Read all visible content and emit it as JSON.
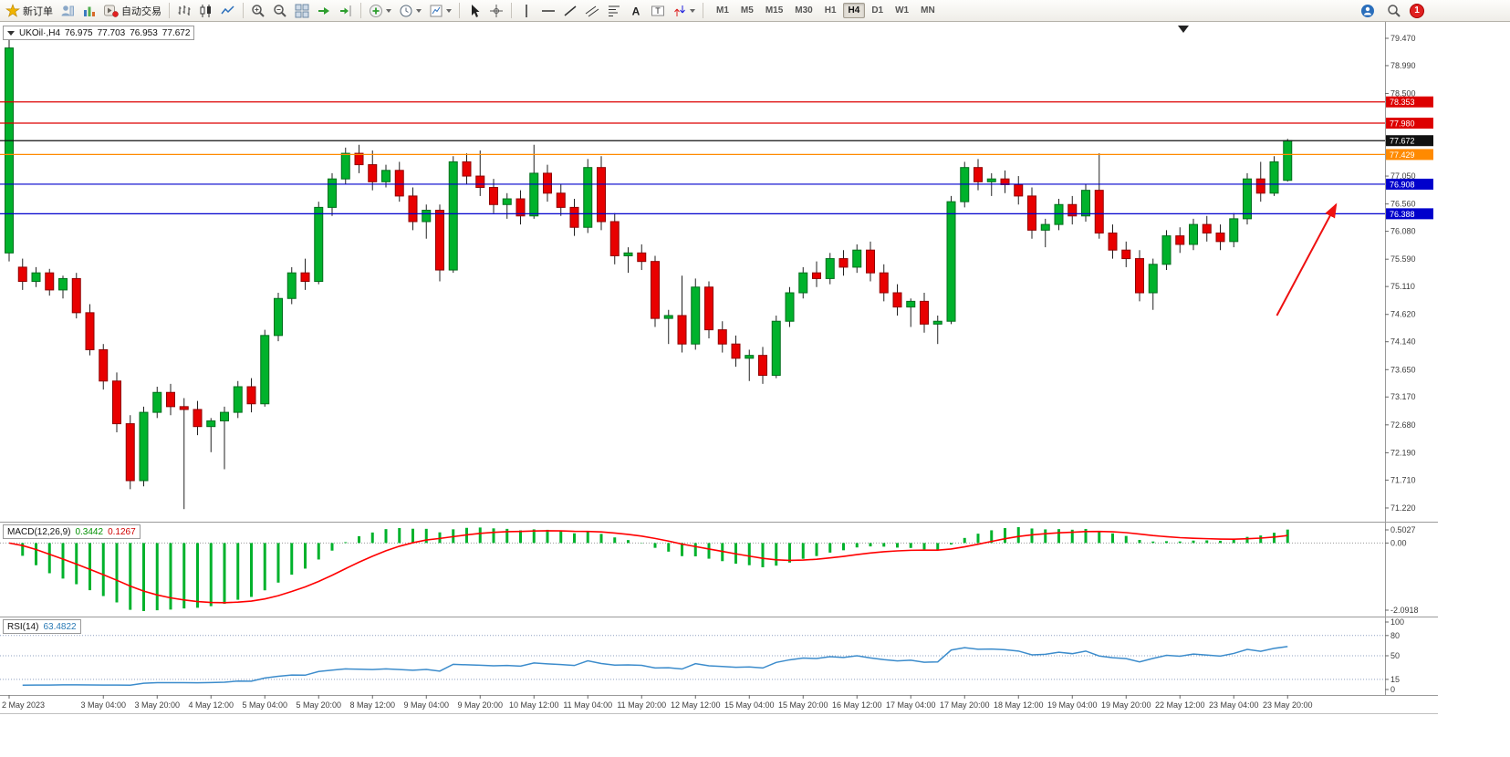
{
  "app": {
    "toolbar": {
      "groups": [
        {
          "items": [
            {
              "icon": "new-order",
              "label": "新订单"
            },
            {
              "icon": "profiles"
            },
            {
              "icon": "market-watch"
            },
            {
              "icon": "autotrading",
              "label": "自动交易"
            }
          ]
        },
        {
          "items": [
            {
              "icon": "bar-chart"
            },
            {
              "icon": "candles"
            },
            {
              "icon": "line-chart"
            }
          ]
        },
        {
          "items": [
            {
              "icon": "zoom-in"
            },
            {
              "icon": "zoom-out"
            },
            {
              "icon": "tiles"
            },
            {
              "icon": "scroll-end"
            },
            {
              "icon": "chart-shift"
            }
          ]
        },
        {
          "items": [
            {
              "icon": "indicators",
              "dropdown": true
            },
            {
              "icon": "periods",
              "dropdown": true
            },
            {
              "icon": "templates",
              "dropdown": true
            }
          ]
        },
        {
          "items": [
            {
              "icon": "cursor"
            },
            {
              "icon": "crosshair"
            }
          ]
        },
        {
          "items": [
            {
              "icon": "vline"
            },
            {
              "icon": "hline"
            },
            {
              "icon": "trendline"
            },
            {
              "icon": "channel"
            },
            {
              "icon": "fibonacci"
            },
            {
              "icon": "text"
            },
            {
              "icon": "text-label"
            },
            {
              "icon": "arrows",
              "dropdown": true
            }
          ]
        }
      ],
      "timeframes": [
        "M1",
        "M5",
        "M15",
        "M30",
        "H1",
        "H4",
        "D1",
        "W1",
        "MN"
      ],
      "active_timeframe": "H4",
      "right_items": [
        {
          "icon": "community"
        },
        {
          "icon": "search"
        },
        {
          "icon": "notification",
          "badge": "1"
        }
      ]
    }
  },
  "chart": {
    "symbol": "UKOil·,H4",
    "open": "76.975",
    "high": "77.703",
    "low": "76.953",
    "close": "77.672"
  },
  "macd": {
    "label": "MACD(12,26,9)",
    "value_main": "0.3442",
    "value_signal": "0.1267"
  },
  "rsi": {
    "label": "RSI(14)",
    "value": "63.4822"
  },
  "chart_data": {
    "type": "candlestick",
    "symbol": "UKOil",
    "timeframe": "H4",
    "title": "UKOil·,H4 76.975 77.703 76.953 77.672",
    "price_range": [
      71.22,
      79.47
    ],
    "candles_ohlc": [
      [
        75.7,
        79.47,
        75.55,
        79.3
      ],
      [
        75.45,
        75.6,
        75.05,
        75.2
      ],
      [
        75.2,
        75.45,
        75.1,
        75.35
      ],
      [
        75.35,
        75.42,
        74.95,
        75.05
      ],
      [
        75.05,
        75.3,
        74.9,
        75.25
      ],
      [
        75.25,
        75.35,
        74.55,
        74.65
      ],
      [
        74.65,
        74.8,
        73.9,
        74.0
      ],
      [
        74.0,
        74.1,
        73.3,
        73.45
      ],
      [
        73.45,
        73.6,
        72.55,
        72.7
      ],
      [
        72.7,
        72.85,
        71.55,
        71.7
      ],
      [
        71.7,
        73.0,
        71.6,
        72.9
      ],
      [
        72.9,
        73.35,
        72.8,
        73.25
      ],
      [
        73.25,
        73.4,
        72.85,
        73.0
      ],
      [
        73.0,
        73.15,
        71.2,
        72.95
      ],
      [
        72.95,
        73.1,
        72.5,
        72.65
      ],
      [
        72.65,
        72.8,
        72.2,
        72.75
      ],
      [
        72.75,
        73.0,
        71.9,
        72.9
      ],
      [
        72.9,
        73.45,
        72.8,
        73.35
      ],
      [
        73.35,
        73.5,
        72.9,
        73.05
      ],
      [
        73.05,
        74.35,
        73.0,
        74.25
      ],
      [
        74.25,
        75.0,
        74.15,
        74.9
      ],
      [
        74.9,
        75.45,
        74.8,
        75.35
      ],
      [
        75.35,
        75.6,
        75.05,
        75.2
      ],
      [
        75.2,
        76.6,
        75.15,
        76.5
      ],
      [
        76.5,
        77.1,
        76.35,
        77.0
      ],
      [
        77.0,
        77.55,
        76.9,
        77.45
      ],
      [
        77.45,
        77.6,
        77.1,
        77.25
      ],
      [
        77.25,
        77.5,
        76.8,
        76.95
      ],
      [
        76.95,
        77.25,
        76.85,
        77.15
      ],
      [
        77.15,
        77.3,
        76.6,
        76.7
      ],
      [
        76.7,
        76.85,
        76.1,
        76.25
      ],
      [
        76.25,
        76.55,
        75.95,
        76.45
      ],
      [
        76.45,
        76.55,
        75.2,
        75.4
      ],
      [
        75.4,
        77.4,
        75.35,
        77.3
      ],
      [
        77.3,
        77.45,
        76.9,
        77.05
      ],
      [
        77.05,
        77.5,
        76.7,
        76.85
      ],
      [
        76.85,
        77.0,
        76.4,
        76.55
      ],
      [
        76.55,
        76.75,
        76.3,
        76.65
      ],
      [
        76.65,
        76.8,
        76.2,
        76.35
      ],
      [
        76.35,
        77.6,
        76.3,
        77.1
      ],
      [
        77.1,
        77.25,
        76.6,
        76.75
      ],
      [
        76.75,
        76.9,
        76.35,
        76.5
      ],
      [
        76.5,
        76.65,
        76.0,
        76.15
      ],
      [
        76.15,
        77.35,
        76.05,
        77.2
      ],
      [
        77.2,
        77.4,
        76.1,
        76.25
      ],
      [
        76.25,
        76.4,
        75.5,
        75.65
      ],
      [
        75.65,
        75.8,
        75.35,
        75.7
      ],
      [
        75.7,
        75.85,
        75.4,
        75.55
      ],
      [
        75.55,
        75.65,
        74.4,
        74.55
      ],
      [
        74.55,
        74.7,
        74.1,
        74.6
      ],
      [
        74.6,
        75.3,
        73.95,
        74.1
      ],
      [
        74.1,
        75.25,
        74.0,
        75.1
      ],
      [
        75.1,
        75.2,
        74.2,
        74.35
      ],
      [
        74.35,
        74.5,
        73.95,
        74.1
      ],
      [
        74.1,
        74.25,
        73.7,
        73.85
      ],
      [
        73.85,
        74.0,
        73.45,
        73.9
      ],
      [
        73.9,
        74.05,
        73.4,
        73.55
      ],
      [
        73.55,
        74.6,
        73.5,
        74.5
      ],
      [
        74.5,
        75.1,
        74.4,
        75.0
      ],
      [
        75.0,
        75.45,
        74.9,
        75.35
      ],
      [
        75.35,
        75.55,
        75.1,
        75.25
      ],
      [
        75.25,
        75.7,
        75.15,
        75.6
      ],
      [
        75.6,
        75.75,
        75.3,
        75.45
      ],
      [
        75.45,
        75.85,
        75.35,
        75.75
      ],
      [
        75.75,
        75.9,
        75.2,
        75.35
      ],
      [
        75.35,
        75.5,
        74.85,
        75.0
      ],
      [
        75.0,
        75.15,
        74.6,
        74.75
      ],
      [
        74.75,
        74.9,
        74.4,
        74.85
      ],
      [
        74.85,
        75.0,
        74.3,
        74.45
      ],
      [
        74.45,
        74.6,
        74.1,
        74.5
      ],
      [
        74.5,
        76.7,
        74.45,
        76.6
      ],
      [
        76.6,
        77.3,
        76.5,
        77.2
      ],
      [
        77.2,
        77.35,
        76.8,
        76.95
      ],
      [
        76.95,
        77.1,
        76.7,
        77.0
      ],
      [
        77.0,
        77.15,
        76.75,
        76.9
      ],
      [
        76.9,
        77.05,
        76.55,
        76.7
      ],
      [
        76.7,
        76.85,
        75.95,
        76.1
      ],
      [
        76.1,
        76.3,
        75.8,
        76.2
      ],
      [
        76.2,
        76.65,
        76.1,
        76.55
      ],
      [
        76.55,
        76.7,
        76.2,
        76.35
      ],
      [
        76.35,
        76.9,
        76.25,
        76.8
      ],
      [
        76.8,
        77.45,
        75.95,
        76.05
      ],
      [
        76.05,
        76.2,
        75.6,
        75.75
      ],
      [
        75.75,
        75.9,
        75.45,
        75.6
      ],
      [
        75.6,
        75.75,
        74.85,
        75.0
      ],
      [
        75.0,
        75.6,
        74.7,
        75.5
      ],
      [
        75.5,
        76.1,
        75.4,
        76.0
      ],
      [
        76.0,
        76.15,
        75.7,
        75.85
      ],
      [
        75.85,
        76.3,
        75.75,
        76.2
      ],
      [
        76.2,
        76.35,
        75.9,
        76.05
      ],
      [
        76.05,
        76.2,
        75.75,
        75.9
      ],
      [
        75.9,
        76.4,
        75.8,
        76.3
      ],
      [
        76.3,
        77.1,
        76.2,
        77.0
      ],
      [
        77.0,
        77.3,
        76.6,
        76.75
      ],
      [
        76.75,
        77.4,
        76.7,
        77.3
      ],
      [
        76.975,
        77.703,
        76.953,
        77.672
      ]
    ],
    "time_labels": [
      {
        "index": 0,
        "label": "2 May 2023"
      },
      {
        "index": 7,
        "label": "3 May 04:00"
      },
      {
        "index": 11,
        "label": "3 May 20:00"
      },
      {
        "index": 15,
        "label": "4 May 12:00"
      },
      {
        "index": 19,
        "label": "5 May 04:00"
      },
      {
        "index": 23,
        "label": "5 May 20:00"
      },
      {
        "index": 27,
        "label": "8 May 12:00"
      },
      {
        "index": 31,
        "label": "9 May 04:00"
      },
      {
        "index": 35,
        "label": "9 May 20:00"
      },
      {
        "index": 39,
        "label": "10 May 12:00"
      },
      {
        "index": 43,
        "label": "11 May 04:00"
      },
      {
        "index": 47,
        "label": "11 May 20:00"
      },
      {
        "index": 51,
        "label": "12 May 12:00"
      },
      {
        "index": 55,
        "label": "15 May 04:00"
      },
      {
        "index": 59,
        "label": "15 May 20:00"
      },
      {
        "index": 63,
        "label": "16 May 12:00"
      },
      {
        "index": 67,
        "label": "17 May 04:00"
      },
      {
        "index": 71,
        "label": "17 May 20:00"
      },
      {
        "index": 75,
        "label": "18 May 12:00"
      },
      {
        "index": 79,
        "label": "19 May 04:00"
      },
      {
        "index": 83,
        "label": "19 May 20:00"
      },
      {
        "index": 87,
        "label": "22 May 12:00"
      },
      {
        "index": 91,
        "label": "23 May 04:00"
      },
      {
        "index": 95,
        "label": "23 May 20:00"
      }
    ],
    "price_ticks": [
      "79.470",
      "78.990",
      "78.500",
      "77.050",
      "76.560",
      "76.080",
      "75.590",
      "75.110",
      "74.620",
      "74.140",
      "73.650",
      "73.170",
      "72.680",
      "72.190",
      "71.710",
      "71.220"
    ],
    "hlines": [
      {
        "price": 78.353,
        "label": "78.353",
        "color": "#dd0000"
      },
      {
        "price": 77.98,
        "label": "77.980",
        "color": "#dd0000"
      },
      {
        "price": 77.672,
        "label": "77.672",
        "color": "#111111"
      },
      {
        "price": 77.429,
        "label": "77.429",
        "color": "#ff8a00"
      },
      {
        "price": 76.908,
        "label": "76.908",
        "color": "#0000cc"
      },
      {
        "price": 76.388,
        "label": "76.388",
        "color": "#0000cc"
      }
    ],
    "annotations": [
      {
        "type": "arrow",
        "color": "#ee1111",
        "from": {
          "candle": 94.2,
          "price": 74.6
        },
        "to": {
          "candle": 98.6,
          "price": 76.55
        }
      }
    ],
    "indicators": [
      {
        "name": "MACD",
        "params": [
          12,
          26,
          9
        ],
        "current": [
          0.3442,
          0.1267
        ],
        "scale_labels": [
          "0.5027",
          "0.00",
          "-2.0918"
        ]
      },
      {
        "name": "RSI",
        "params": [
          14
        ],
        "current": 63.4822,
        "scale_labels": [
          "100",
          "80",
          "50",
          "15",
          "0"
        ],
        "levels": [
          80,
          50,
          15
        ]
      }
    ],
    "colors": {
      "bull": "#00b22c",
      "bear": "#e80000",
      "macd_hist": "#00b22c",
      "macd_signal": "#ff0000",
      "rsi_line": "#3c8ccc"
    }
  }
}
